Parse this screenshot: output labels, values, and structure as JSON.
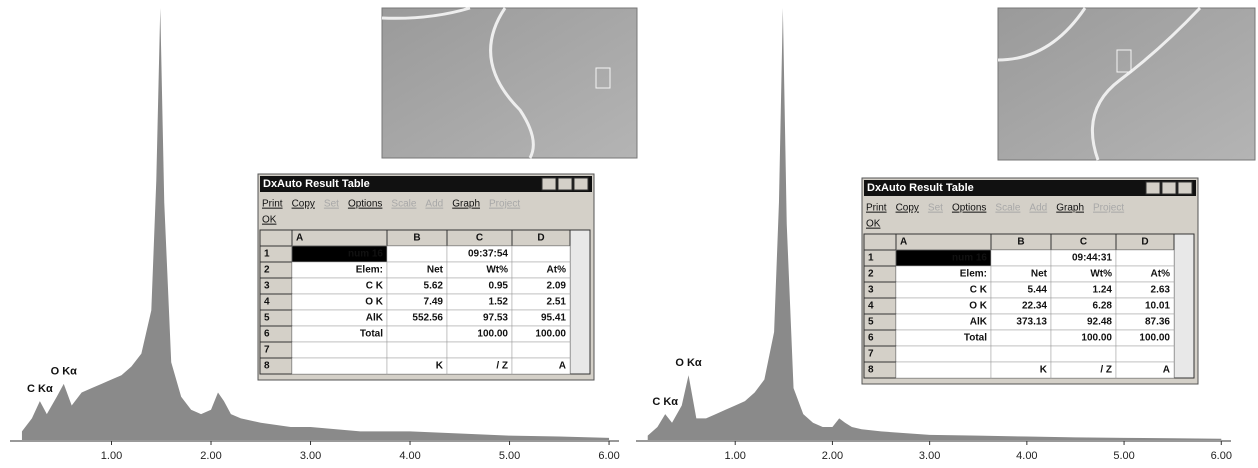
{
  "chart_data": [
    {
      "type": "area",
      "x": [
        0.1,
        0.2,
        0.28,
        0.35,
        0.45,
        0.52,
        0.6,
        0.7,
        0.8,
        0.9,
        1.0,
        1.1,
        1.2,
        1.3,
        1.4,
        1.45,
        1.49,
        1.53,
        1.6,
        1.7,
        1.8,
        1.9,
        2.0,
        2.07,
        2.13,
        2.2,
        2.3,
        2.5,
        2.8,
        3.0,
        3.5,
        4.0,
        4.5,
        5.0,
        5.5,
        6.0
      ],
      "series": [
        {
          "color": "#8a8a8a",
          "values": [
            2,
            5,
            9,
            6,
            10,
            13,
            8,
            11,
            12,
            13,
            14,
            15,
            17,
            20,
            30,
            60,
            100,
            55,
            18,
            10,
            7,
            6,
            7,
            11,
            9,
            6,
            5,
            4,
            3,
            3,
            2,
            2,
            1.5,
            1,
            0.8,
            0.5
          ]
        }
      ],
      "xlim": [
        0,
        6.1
      ],
      "ylim": [
        0,
        100
      ],
      "xticks": [
        {
          "value": 1,
          "label": "1.00"
        },
        {
          "value": 2,
          "label": "2.00"
        },
        {
          "value": 3,
          "label": "3.00"
        },
        {
          "value": 4,
          "label": "4.00"
        },
        {
          "value": 5,
          "label": "5.00"
        },
        {
          "value": 6,
          "label": "6.00"
        }
      ],
      "annotations": [
        {
          "text": "C Kα",
          "x": 0.28
        },
        {
          "text": "O Kα",
          "x": 0.52
        }
      ]
    },
    {
      "type": "area",
      "x": [
        0.1,
        0.2,
        0.28,
        0.35,
        0.45,
        0.52,
        0.6,
        0.7,
        0.8,
        0.9,
        1.0,
        1.1,
        1.2,
        1.3,
        1.4,
        1.45,
        1.49,
        1.53,
        1.6,
        1.7,
        1.8,
        1.9,
        2.0,
        2.07,
        2.13,
        2.2,
        2.3,
        2.5,
        2.8,
        3.0,
        3.5,
        4.0,
        4.5,
        5.0,
        5.5,
        6.0
      ],
      "series": [
        {
          "color": "#8a8a8a",
          "values": [
            1,
            3,
            6,
            4,
            8,
            15,
            5,
            5,
            6,
            7,
            8,
            9,
            11,
            14,
            25,
            55,
            100,
            50,
            12,
            6,
            4,
            3,
            3,
            5,
            4,
            3,
            2.5,
            2,
            1.5,
            1.2,
            1,
            0.8,
            0.6,
            0.5,
            0.4,
            0.3
          ]
        }
      ],
      "xlim": [
        0,
        6.1
      ],
      "ylim": [
        0,
        100
      ],
      "xticks": [
        {
          "value": 1,
          "label": "1.00"
        },
        {
          "value": 2,
          "label": "2.00"
        },
        {
          "value": 3,
          "label": "3.00"
        },
        {
          "value": 4,
          "label": "4.00"
        },
        {
          "value": 5,
          "label": "5.00"
        },
        {
          "value": 6,
          "label": "6.00"
        }
      ],
      "annotations": [
        {
          "text": "C Kα",
          "x": 0.28
        },
        {
          "text": "O Kα",
          "x": 0.52
        }
      ]
    }
  ],
  "result_tables": [
    {
      "title": "DxAuto Result Table",
      "menu": [
        "Print",
        "Copy",
        "Set",
        "Options",
        "Scale",
        "Add",
        "Graph",
        "Project",
        "OK"
      ],
      "disabled_menu": [
        2,
        4,
        5,
        7
      ],
      "columns": [
        "A",
        "B",
        "C",
        "D"
      ],
      "rows": [
        {
          "number": 1,
          "cells": [
            "num 16",
            null,
            "09:37:54",
            null
          ]
        },
        {
          "number": 2,
          "cells": [
            "Elem:",
            "Net",
            "Wt%",
            "At%"
          ]
        },
        {
          "number": 3,
          "cells": [
            "C K",
            "5.62",
            "0.95",
            "2.09"
          ]
        },
        {
          "number": 4,
          "cells": [
            "O K",
            "7.49",
            "1.52",
            "2.51"
          ]
        },
        {
          "number": 5,
          "cells": [
            "AlK",
            "552.56",
            "97.53",
            "95.41"
          ]
        },
        {
          "number": 6,
          "cells": [
            "Total",
            null,
            "100.00",
            "100.00"
          ]
        },
        {
          "number": 7,
          "cells": [
            null,
            null,
            null,
            null
          ]
        },
        {
          "number": 8,
          "cells": [
            null,
            "K",
            "/ Z",
            "A"
          ]
        }
      ]
    },
    {
      "title": "DxAuto Result Table",
      "menu": [
        "Print",
        "Copy",
        "Set",
        "Options",
        "Scale",
        "Add",
        "Graph",
        "Project",
        "OK"
      ],
      "disabled_menu": [
        2,
        4,
        5,
        7
      ],
      "columns": [
        "A",
        "B",
        "C",
        "D"
      ],
      "rows": [
        {
          "number": 1,
          "cells": [
            "num 16",
            null,
            "09:44:31",
            null
          ]
        },
        {
          "number": 2,
          "cells": [
            "Elem:",
            "Net",
            "Wt%",
            "At%"
          ]
        },
        {
          "number": 3,
          "cells": [
            "C K",
            "5.44",
            "1.24",
            "2.63"
          ]
        },
        {
          "number": 4,
          "cells": [
            "O K",
            "22.34",
            "6.28",
            "10.01"
          ]
        },
        {
          "number": 5,
          "cells": [
            "AlK",
            "373.13",
            "92.48",
            "87.36"
          ]
        },
        {
          "number": 6,
          "cells": [
            "Total",
            null,
            "100.00",
            "100.00"
          ]
        },
        {
          "number": 7,
          "cells": [
            null,
            null,
            null,
            null
          ]
        },
        {
          "number": 8,
          "cells": [
            null,
            "K",
            "/ Z",
            "A"
          ]
        }
      ]
    }
  ]
}
